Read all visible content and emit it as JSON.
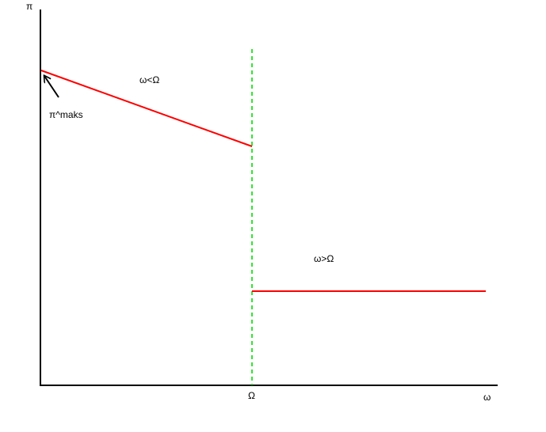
{
  "axes": {
    "y_label": "π",
    "x_label": "ω",
    "x_tick_label": "Ω"
  },
  "annotations": {
    "region_below": "ω<Ω",
    "region_above": "ω>Ω",
    "max_marker": "π^maks"
  },
  "colors": {
    "axis": "#000000",
    "curve": "#ff0000",
    "threshold": "#00dd00"
  },
  "curve_description": {
    "segment_1": "declining line from π^maks to the threshold Ω",
    "segment_2": "flat line beyond the threshold Ω",
    "threshold": "vertical dashed line at ω = Ω"
  }
}
